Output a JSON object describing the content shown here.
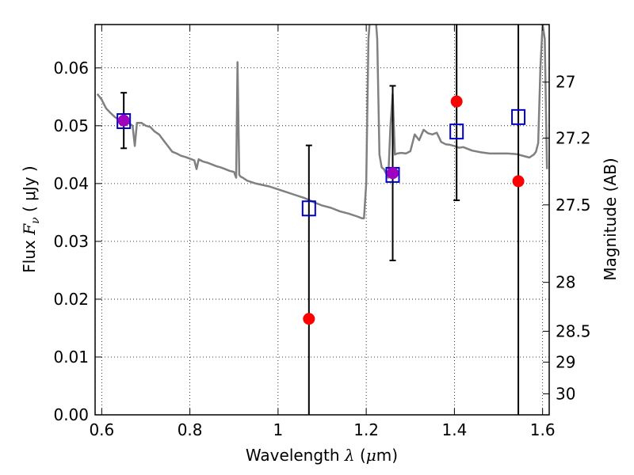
{
  "chart_data": {
    "type": "scatter",
    "title": "",
    "xlabel": "Wavelength  λ (μm)",
    "xlabel_parts": {
      "text": "Wavelength  ",
      "symbol": "λ",
      "unit_open": " (",
      "unit_mu": "μ",
      "unit_rest": "m)"
    },
    "ylabel": "Flux  Fν  ( μJy )",
    "ylabel_parts": {
      "text": "Flux  ",
      "symbol": "F",
      "sub": "ν",
      "unit": "  ( μJy )"
    },
    "y2label": "Magnitude (AB)",
    "xlim": [
      0.585,
      1.615
    ],
    "ylim": [
      0.0,
      0.0675
    ],
    "grid": true,
    "grid_style": "dotted",
    "x_ticks": [
      0.6,
      0.8,
      1.0,
      1.2,
      1.4,
      1.6
    ],
    "x_tick_labels": [
      "0.6",
      "0.8",
      "1",
      "1.2",
      "1.4",
      "1.6"
    ],
    "y_ticks": [
      0.0,
      0.01,
      0.02,
      0.03,
      0.04,
      0.05,
      0.06
    ],
    "y_tick_labels": [
      "0.00",
      "0.01",
      "0.02",
      "0.03",
      "0.04",
      "0.05",
      "0.06"
    ],
    "y2_ticks": [
      {
        "mag": 27,
        "label": "27"
      },
      {
        "mag": 27.2,
        "label": "27.2"
      },
      {
        "mag": 27.5,
        "label": "27.5"
      },
      {
        "mag": 28,
        "label": "28"
      },
      {
        "mag": 28.5,
        "label": "28.5"
      },
      {
        "mag": 29,
        "label": "29"
      },
      {
        "mag": 30,
        "label": "30"
      }
    ],
    "colors": {
      "model": "#808080",
      "observed": "#ff0000",
      "model_photometry": "#0000cc",
      "overlap": "#a000c0",
      "errorbar": "#000000"
    },
    "series": [
      {
        "kind": "model_spectrum",
        "x": [
          0.59,
          0.6,
          0.61,
          0.62,
          0.63,
          0.64,
          0.65,
          0.66,
          0.67,
          0.675,
          0.68,
          0.69,
          0.7,
          0.71,
          0.72,
          0.73,
          0.74,
          0.75,
          0.76,
          0.77,
          0.78,
          0.79,
          0.8,
          0.81,
          0.815,
          0.82,
          0.83,
          0.84,
          0.85,
          0.86,
          0.87,
          0.88,
          0.89,
          0.9,
          0.905,
          0.908,
          0.912,
          0.915,
          0.92,
          0.93,
          0.95,
          0.98,
          1.0,
          1.02,
          1.04,
          1.06,
          1.08,
          1.1,
          1.12,
          1.14,
          1.16,
          1.18,
          1.19,
          1.195,
          1.2,
          1.205,
          1.21,
          1.22,
          1.225,
          1.23,
          1.235,
          1.24,
          1.25,
          1.255,
          1.26,
          1.265,
          1.27,
          1.28,
          1.29,
          1.3,
          1.31,
          1.32,
          1.33,
          1.34,
          1.35,
          1.36,
          1.37,
          1.38,
          1.39,
          1.4,
          1.41,
          1.42,
          1.44,
          1.46,
          1.48,
          1.5,
          1.52,
          1.54,
          1.56,
          1.57,
          1.58,
          1.585,
          1.59,
          1.595,
          1.6,
          1.605,
          1.61
        ],
        "y": [
          0.0555,
          0.0545,
          0.053,
          0.0522,
          0.0515,
          0.051,
          0.0508,
          0.0505,
          0.05,
          0.0465,
          0.0505,
          0.0505,
          0.05,
          0.0498,
          0.049,
          0.0485,
          0.0475,
          0.0465,
          0.0455,
          0.0452,
          0.0448,
          0.0446,
          0.0443,
          0.044,
          0.0425,
          0.0442,
          0.0438,
          0.0436,
          0.0433,
          0.043,
          0.0428,
          0.0425,
          0.0422,
          0.042,
          0.041,
          0.061,
          0.0415,
          0.0412,
          0.041,
          0.0405,
          0.04,
          0.0395,
          0.039,
          0.0385,
          0.038,
          0.0375,
          0.0368,
          0.0362,
          0.0358,
          0.0352,
          0.0348,
          0.0343,
          0.034,
          0.034,
          0.04,
          0.065,
          0.07,
          0.07,
          0.065,
          0.045,
          0.0428,
          0.0425,
          0.041,
          0.05,
          0.0555,
          0.045,
          0.0452,
          0.0453,
          0.0452,
          0.0456,
          0.0485,
          0.0475,
          0.0493,
          0.0487,
          0.0485,
          0.0488,
          0.0472,
          0.0468,
          0.0467,
          0.0465,
          0.0462,
          0.0463,
          0.0457,
          0.0454,
          0.0452,
          0.0452,
          0.0452,
          0.0451,
          0.0447,
          0.0445,
          0.045,
          0.0455,
          0.047,
          0.06,
          0.0675,
          0.065,
          0.0425
        ]
      },
      {
        "kind": "observed_photometry",
        "marker": "circle",
        "points": [
          {
            "x": 0.65,
            "y": 0.0509,
            "err": 0.0048
          },
          {
            "x": 1.07,
            "y": 0.0166,
            "err": 0.03
          },
          {
            "x": 1.26,
            "y": 0.0418,
            "err": 0.0151
          },
          {
            "x": 1.405,
            "y": 0.0542,
            "err": 0.0171
          },
          {
            "x": 1.545,
            "y": 0.0404,
            "err": 0.0404
          }
        ]
      },
      {
        "kind": "model_photometry",
        "marker": "open-square",
        "points": [
          {
            "x": 0.65,
            "y": 0.0508
          },
          {
            "x": 1.07,
            "y": 0.0357
          },
          {
            "x": 1.26,
            "y": 0.0415
          },
          {
            "x": 1.405,
            "y": 0.049
          },
          {
            "x": 1.545,
            "y": 0.0515
          }
        ]
      }
    ]
  }
}
